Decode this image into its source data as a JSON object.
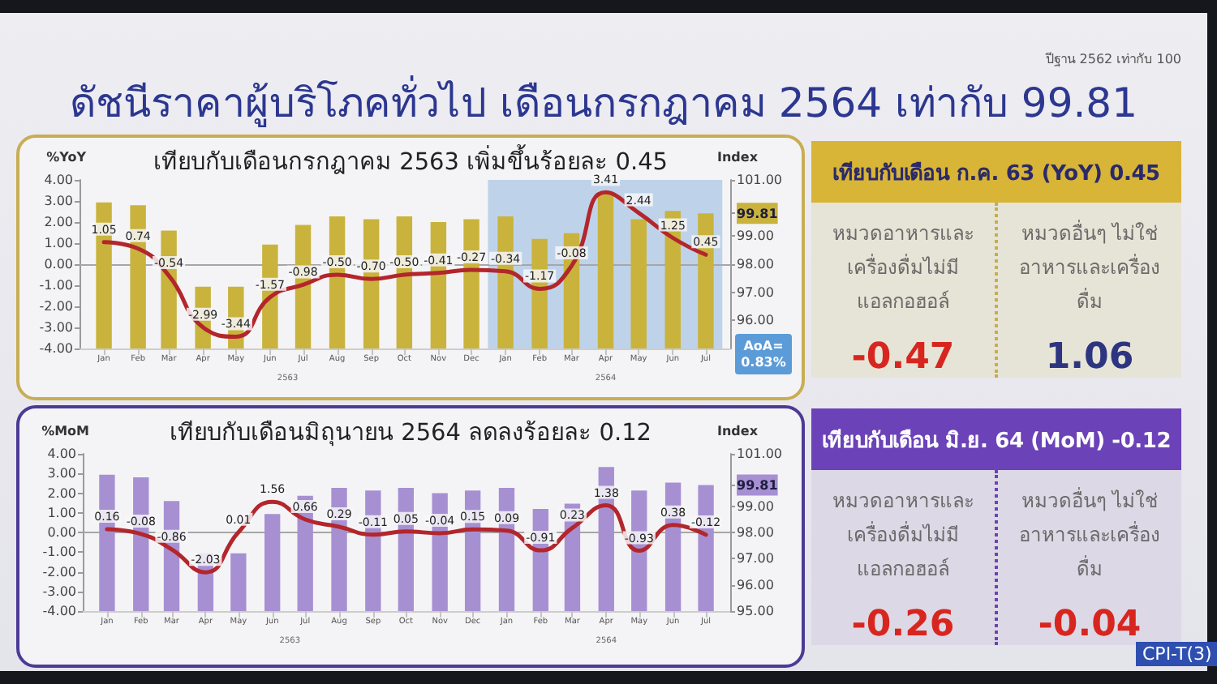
{
  "chart_data": [
    {
      "type": "other",
      "title": "ดัชนีราคาผู้บริโภคทั่วไป เดือนกรกฎาคม 2564 เท่ากับ 99.81",
      "annotations": [
        "ปีฐาน 2562 เท่ากับ 100"
      ]
    },
    {
      "type": "bar",
      "title": "เทียบกับเดือนกรกฎาคม 2563 เพิ่มขึ้นร้อยละ 0.45",
      "ylabel": "%YoY",
      "y2label": "Index",
      "x": [
        "2563-01",
        "2563-02",
        "2563-03",
        "2563-04",
        "2563-05",
        "2563-06",
        "2563-07",
        "2563-08",
        "2563-09",
        "2563-10",
        "2563-11",
        "2563-12",
        "2564-01",
        "2564-02",
        "2564-03",
        "2564-04",
        "2564-05",
        "2564-06",
        "2564-07"
      ],
      "xlim": [
        "2562-12-17",
        "2564-07-16"
      ],
      "xticks": [
        {
          "value": "2563-01",
          "label": "Jan"
        },
        {
          "value": "2563-02",
          "label": "Feb"
        },
        {
          "value": "2563-03",
          "label": "Mar"
        },
        {
          "value": "2563-04",
          "label": "Apr"
        },
        {
          "value": "2563-05",
          "label": "May"
        },
        {
          "value": "2563-06",
          "label": "Jun"
        },
        {
          "value": "2563-07",
          "label": "Jul"
        },
        {
          "value": "2563-08",
          "label": "Aug"
        },
        {
          "value": "2563-09",
          "label": "Sep"
        },
        {
          "value": "2563-10",
          "label": "Oct"
        },
        {
          "value": "2563-11",
          "label": "Nov"
        },
        {
          "value": "2563-12",
          "label": "Dec"
        },
        {
          "value": "2564-01",
          "label": "Jan"
        },
        {
          "value": "2564-02",
          "label": "Feb"
        },
        {
          "value": "2564-03",
          "label": "Mar"
        },
        {
          "value": "2564-04",
          "label": "Apr"
        },
        {
          "value": "2564-05",
          "label": "May"
        },
        {
          "value": "2564-06",
          "label": "Jun"
        },
        {
          "value": "2564-07",
          "label": "Jul"
        }
      ],
      "series": [
        {
          "type": "bar",
          "axis": "y2",
          "color": "#c9b33c",
          "values": [
            100.2,
            100.1,
            99.2,
            97.2,
            97.2,
            98.7,
            99.4,
            99.7,
            99.6,
            99.7,
            99.5,
            99.6,
            99.7,
            98.9,
            99.1,
            100.5,
            99.6,
            99.9,
            99.81
          ]
        },
        {
          "type": "line",
          "color": "#b3262c",
          "values": [
            1.05,
            0.74,
            -0.54,
            -2.99,
            -3.44,
            -1.57,
            -0.98,
            -0.5,
            -0.7,
            -0.5,
            -0.41,
            -0.27,
            -0.34,
            -1.17,
            -0.08,
            3.41,
            2.44,
            1.25,
            0.45
          ],
          "value_labels": [
            "1.05",
            "0.74",
            "-0.54",
            "-2.99",
            "-3.44",
            "-1.57",
            "-0.98",
            "-0.50",
            "-0.70",
            "-0.50",
            "-0.41",
            "-0.27",
            "-0.34",
            "-1.17",
            "-0.08",
            "3.41",
            "2.44",
            "1.25",
            "0.45"
          ]
        }
      ],
      "ylim": [
        -4,
        4
      ],
      "yticks": [
        {
          "value": -4,
          "label": "-4.00"
        },
        {
          "value": -3,
          "label": "-3.00"
        },
        {
          "value": -2,
          "label": "-2.00"
        },
        {
          "value": -1,
          "label": "-1.00"
        },
        {
          "value": 0,
          "label": "0.00"
        },
        {
          "value": 1,
          "label": "1.00"
        },
        {
          "value": 2,
          "label": "2.00"
        },
        {
          "value": 3,
          "label": "3.00"
        },
        {
          "value": 4,
          "label": "4.00"
        }
      ],
      "y2lim": [
        95,
        101
      ],
      "y2ticks": [
        {
          "value": 96,
          "label": "96.00"
        },
        {
          "value": 97,
          "label": "97.00"
        },
        {
          "value": 98,
          "label": "98.00"
        },
        {
          "value": 99,
          "label": "99.00"
        },
        {
          "value": 99.81,
          "label": "99.81"
        },
        {
          "value": 101,
          "label": "101.00"
        }
      ],
      "ref_lines": [
        {
          "axis": "y",
          "value": 0,
          "color": "#a6a6a6"
        }
      ],
      "bands": [
        {
          "axis": "x",
          "from": "2563-12-16",
          "to": "2564-07-16",
          "color": "#bed3e9"
        }
      ],
      "annotations": [
        "2563",
        "2564"
      ],
      "marker": "none"
    },
    {
      "type": "other",
      "annotations": [
        "AoA= 0.83%"
      ]
    },
    {
      "type": "other",
      "title": "เทียบกับเดือน ก.ค. 63 (YoY) 0.45",
      "annotations": [
        "หมวดอาหารและเครื่องดื่มไม่มีแอลกอฮอล์",
        "-0.47",
        "หมวดอื่นๆ ไม่ใช่อาหารและเครื่องดื่ม",
        "1.06"
      ]
    },
    {
      "type": "bar",
      "title": "เทียบกับเดือนมิถุนายน 2564 ลดลงร้อยละ 0.12",
      "ylabel": "%MoM",
      "y2label": "Index",
      "x": [
        "2563-01",
        "2563-02",
        "2563-03",
        "2563-04",
        "2563-05",
        "2563-06",
        "2563-07",
        "2563-08",
        "2563-09",
        "2563-10",
        "2563-11",
        "2563-12",
        "2564-01",
        "2564-02",
        "2564-03",
        "2564-04",
        "2564-05",
        "2564-06",
        "2564-07"
      ],
      "xlim": [
        "2562-12-17",
        "2564-07-16"
      ],
      "xticks": [
        {
          "value": "2563-01",
          "label": "Jan"
        },
        {
          "value": "2563-02",
          "label": "Feb"
        },
        {
          "value": "2563-03",
          "label": "Mar"
        },
        {
          "value": "2563-04",
          "label": "Apr"
        },
        {
          "value": "2563-05",
          "label": "May"
        },
        {
          "value": "2563-06",
          "label": "Jun"
        },
        {
          "value": "2563-07",
          "label": "Jul"
        },
        {
          "value": "2563-08",
          "label": "Aug"
        },
        {
          "value": "2563-09",
          "label": "Sep"
        },
        {
          "value": "2563-10",
          "label": "Oct"
        },
        {
          "value": "2563-11",
          "label": "Nov"
        },
        {
          "value": "2563-12",
          "label": "Dec"
        },
        {
          "value": "2564-01",
          "label": "Jan"
        },
        {
          "value": "2564-02",
          "label": "Feb"
        },
        {
          "value": "2564-03",
          "label": "Mar"
        },
        {
          "value": "2564-04",
          "label": "Apr"
        },
        {
          "value": "2564-05",
          "label": "May"
        },
        {
          "value": "2564-06",
          "label": "Jun"
        },
        {
          "value": "2564-07",
          "label": "Jul"
        }
      ],
      "series": [
        {
          "type": "bar",
          "axis": "y2",
          "color": "#a690d2",
          "values": [
            100.2,
            100.1,
            99.2,
            97.2,
            97.2,
            98.7,
            99.4,
            99.7,
            99.6,
            99.7,
            99.5,
            99.6,
            99.7,
            98.9,
            99.1,
            100.5,
            99.6,
            99.9,
            99.81
          ]
        },
        {
          "type": "line",
          "color": "#b3262c",
          "values": [
            0.16,
            -0.08,
            -0.86,
            -2.03,
            0.01,
            1.56,
            0.66,
            0.29,
            -0.11,
            0.05,
            -0.04,
            0.15,
            0.09,
            -0.91,
            0.23,
            1.38,
            -0.93,
            0.38,
            -0.12
          ],
          "value_labels": [
            "0.16",
            "-0.08",
            "-0.86",
            "-2.03",
            "0.01",
            "1.56",
            "0.66",
            "0.29",
            "-0.11",
            "0.05",
            "-0.04",
            "0.15",
            "0.09",
            "-0.91",
            "0.23",
            "1.38",
            "-0.93",
            "0.38",
            "-0.12"
          ]
        }
      ],
      "ylim": [
        -4,
        4
      ],
      "yticks": [
        {
          "value": -4,
          "label": "-4.00"
        },
        {
          "value": -3,
          "label": "-3.00"
        },
        {
          "value": -2,
          "label": "-2.00"
        },
        {
          "value": -1,
          "label": "-1.00"
        },
        {
          "value": 0,
          "label": "0.00"
        },
        {
          "value": 1,
          "label": "1.00"
        },
        {
          "value": 2,
          "label": "2.00"
        },
        {
          "value": 3,
          "label": "3.00"
        },
        {
          "value": 4,
          "label": "4.00"
        }
      ],
      "y2lim": [
        95,
        101
      ],
      "y2ticks": [
        {
          "value": 95,
          "label": "95.00"
        },
        {
          "value": 96,
          "label": "96.00"
        },
        {
          "value": 97,
          "label": "97.00"
        },
        {
          "value": 98,
          "label": "98.00"
        },
        {
          "value": 99,
          "label": "99.00"
        },
        {
          "value": 99.81,
          "label": "99.81"
        },
        {
          "value": 101,
          "label": "101.00"
        }
      ],
      "ref_lines": [
        {
          "axis": "y",
          "value": 0,
          "color": "#a6a6a6"
        }
      ],
      "annotations": [
        "2563",
        "2564"
      ],
      "marker": "none"
    },
    {
      "type": "other",
      "title": "เทียบกับเดือน มิ.ย. 64 (MoM) -0.12",
      "annotations": [
        "หมวดอาหารและเครื่องดื่มไม่มีแอลกอฮอล์",
        "-0.26",
        "หมวดอื่นๆ ไม่ใช่อาหารและเครื่องดื่ม",
        "-0.04",
        "CPI-T(3)"
      ]
    }
  ]
}
